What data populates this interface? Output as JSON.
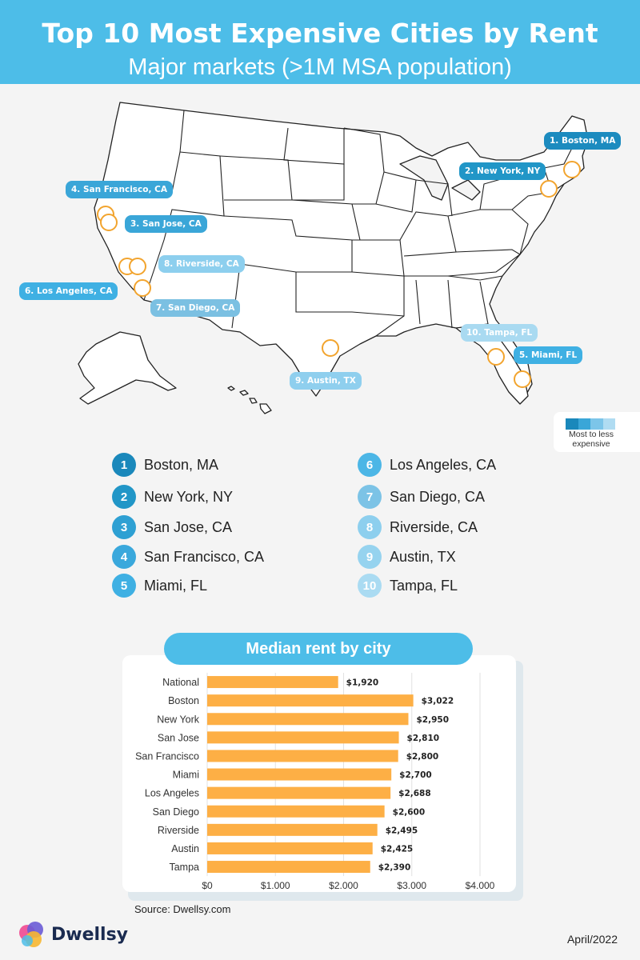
{
  "header": {
    "title": "Top 10 Most Expensive Cities by Rent",
    "subtitle": "Major markets (>1M MSA population)"
  },
  "map_pins": [
    {
      "label": "1. Boston, MA",
      "color": "#1c8bbf"
    },
    {
      "label": "2. New York, NY",
      "color": "#2196c7"
    },
    {
      "label": "3. San Jose, CA",
      "color": "#3aa6d8"
    },
    {
      "label": "4. San Francisco, CA",
      "color": "#3aa6d8"
    },
    {
      "label": "5. Miami, FL",
      "color": "#3fb0e3"
    },
    {
      "label": "6. Los Angeles, CA",
      "color": "#3fb0e3"
    },
    {
      "label": "7. San Diego, CA",
      "color": "#7bc0e2"
    },
    {
      "label": "8. Riverside, CA",
      "color": "#8dcfee"
    },
    {
      "label": "9. Austin, TX",
      "color": "#8fcfee"
    },
    {
      "label": "10. Tampa, FL",
      "color": "#a9daf1"
    }
  ],
  "legend": {
    "label": "Most to less expensive",
    "swatch_colors": [
      "#1a88bb",
      "#3aa6d8",
      "#7cc5e9",
      "#b0dcf2"
    ]
  },
  "ranking": [
    {
      "rank": "1",
      "city": "Boston, MA",
      "color": "#1a88bb"
    },
    {
      "rank": "2",
      "city": "New York, NY",
      "color": "#2196c7"
    },
    {
      "rank": "3",
      "city": "San Jose, CA",
      "color": "#2ea0d3"
    },
    {
      "rank": "4",
      "city": "San Francisco, CA",
      "color": "#3aa8dc"
    },
    {
      "rank": "5",
      "city": "Miami, FL",
      "color": "#3fb0e3"
    },
    {
      "rank": "6",
      "city": "Los Angeles, CA",
      "color": "#4cb6e6"
    },
    {
      "rank": "7",
      "city": "San Diego, CA",
      "color": "#7cc3e6"
    },
    {
      "rank": "8",
      "city": "Riverside, CA",
      "color": "#8dcfee"
    },
    {
      "rank": "9",
      "city": "Austin, TX",
      "color": "#96d3ef"
    },
    {
      "rank": "10",
      "city": "Tampa, FL",
      "color": "#aadbf2"
    }
  ],
  "chart_data": {
    "type": "bar",
    "orientation": "horizontal",
    "title": "Median rent by city",
    "categories": [
      "National",
      "Boston",
      "New York",
      "San Jose",
      "San Francisco",
      "Miami",
      "Los Angeles",
      "San Diego",
      "Riverside",
      "Austin",
      "Tampa"
    ],
    "values": [
      1920,
      3022,
      2950,
      2810,
      2800,
      2700,
      2688,
      2600,
      2495,
      2425,
      2390
    ],
    "value_labels": [
      "$1,920",
      "$3,022",
      "$2,950",
      "$2,810",
      "$2,800",
      "$2,700",
      "$2,688",
      "$2,600",
      "$2,495",
      "$2,425",
      "$2,390"
    ],
    "xlim": [
      0,
      4000
    ],
    "x_ticks": [
      0,
      1000,
      2000,
      3000,
      4000
    ],
    "x_tick_labels": [
      "$0",
      "$1.000",
      "$2.000",
      "$3.000",
      "$4.000"
    ],
    "bar_color": "#fdaf45",
    "grid": true
  },
  "footer": {
    "source": "Source: Dwellsy.com",
    "brand": "Dwellsy",
    "date": "April/2022"
  }
}
